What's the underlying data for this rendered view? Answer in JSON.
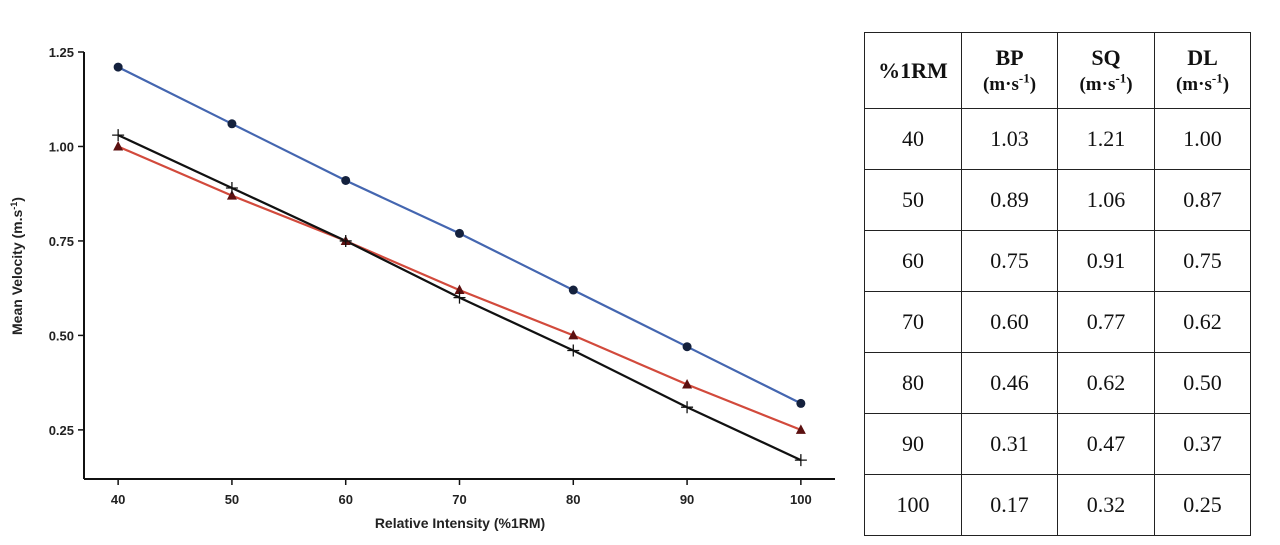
{
  "chart_data": {
    "type": "line",
    "title": "",
    "xlabel": "Relative Intensity (%1RM)",
    "ylabel": "Mean Velocity (m.s",
    "ylabel_sup": "-1",
    "ylabel_close": ")",
    "x": [
      40,
      50,
      60,
      70,
      80,
      90,
      100
    ],
    "x_ticks": [
      "40",
      "50",
      "60",
      "70",
      "80",
      "90",
      "100"
    ],
    "y_ticks": [
      {
        "value": 0.25,
        "label": "0.25"
      },
      {
        "value": 0.5,
        "label": "0.50"
      },
      {
        "value": 0.75,
        "label": "0.75"
      },
      {
        "value": 1.0,
        "label": "1.00"
      },
      {
        "value": 1.25,
        "label": "1.25"
      }
    ],
    "xlim": [
      37,
      103
    ],
    "ylim": [
      0.12,
      1.25
    ],
    "grid": false,
    "series": [
      {
        "name": "SQ",
        "marker": "circle",
        "color": "#4466b0",
        "marker_color": "#14213d",
        "values": [
          1.21,
          1.06,
          0.91,
          0.77,
          0.62,
          0.47,
          0.32
        ]
      },
      {
        "name": "DL",
        "marker": "triangle",
        "color": "#d24a3c",
        "marker_color": "#5c1010",
        "values": [
          1.0,
          0.87,
          0.75,
          0.62,
          0.5,
          0.37,
          0.25
        ]
      },
      {
        "name": "BP",
        "marker": "plus",
        "color": "#111111",
        "marker_color": "#111111",
        "values": [
          1.03,
          0.89,
          0.75,
          0.6,
          0.46,
          0.31,
          0.17
        ]
      }
    ]
  },
  "table": {
    "headers": [
      {
        "label": "%1RM",
        "unit": "",
        "unit_sup": "",
        "unit_close": ""
      },
      {
        "label": "BP",
        "unit": "(m·s",
        "unit_sup": "-1",
        "unit_close": ")"
      },
      {
        "label": "SQ",
        "unit": "(m·s",
        "unit_sup": "-1",
        "unit_close": ")"
      },
      {
        "label": "DL",
        "unit": "(m·s",
        "unit_sup": "-1",
        "unit_close": ")"
      }
    ],
    "rows": [
      [
        "40",
        "1.03",
        "1.21",
        "1.00"
      ],
      [
        "50",
        "0.89",
        "1.06",
        "0.87"
      ],
      [
        "60",
        "0.75",
        "0.91",
        "0.75"
      ],
      [
        "70",
        "0.60",
        "0.77",
        "0.62"
      ],
      [
        "80",
        "0.46",
        "0.62",
        "0.50"
      ],
      [
        "90",
        "0.31",
        "0.47",
        "0.37"
      ],
      [
        "100",
        "0.17",
        "0.32",
        "0.25"
      ]
    ]
  }
}
